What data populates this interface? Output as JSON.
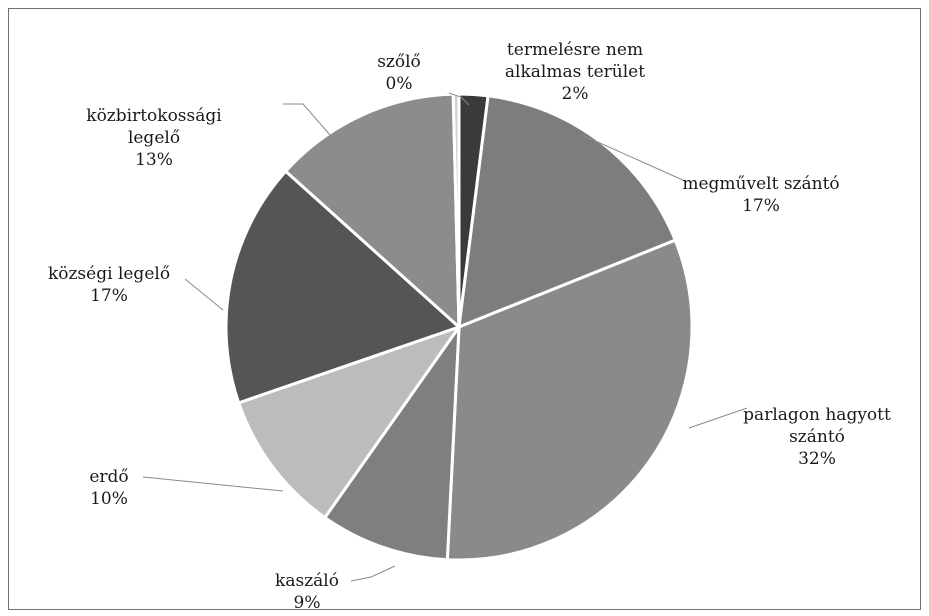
{
  "chart_data": {
    "type": "pie",
    "slices": [
      {
        "key": "termeles",
        "lines": [
          "termelésre nem",
          "alkalmas terület"
        ],
        "pct_label": "2%",
        "value": 2,
        "color": "#3a3a3a"
      },
      {
        "key": "megmuvelt",
        "lines": [
          "megművelt szántó"
        ],
        "pct_label": "17%",
        "value": 17,
        "color": "#7d7d7d"
      },
      {
        "key": "parlagon",
        "lines": [
          "parlagon hagyott",
          "szántó"
        ],
        "pct_label": "32%",
        "value": 32,
        "color": "#8a8a8a"
      },
      {
        "key": "kaszalo",
        "lines": [
          "kaszáló"
        ],
        "pct_label": "9%",
        "value": 9,
        "color": "#7f7f7f"
      },
      {
        "key": "erdo",
        "lines": [
          "erdő"
        ],
        "pct_label": "10%",
        "value": 10,
        "color": "#bcbcbc"
      },
      {
        "key": "kozsegi",
        "lines": [
          "községi legelő"
        ],
        "pct_label": "17%",
        "value": 17,
        "color": "#555555"
      },
      {
        "key": "kozbirtokossagi",
        "lines": [
          "közbirtokossági",
          "legelő"
        ],
        "pct_label": "13%",
        "value": 13,
        "color": "#8c8c8c"
      },
      {
        "key": "szolo",
        "lines": [
          "szőlő"
        ],
        "pct_label": "0%",
        "value": 0.4,
        "color": "#d2d2d2"
      }
    ]
  }
}
